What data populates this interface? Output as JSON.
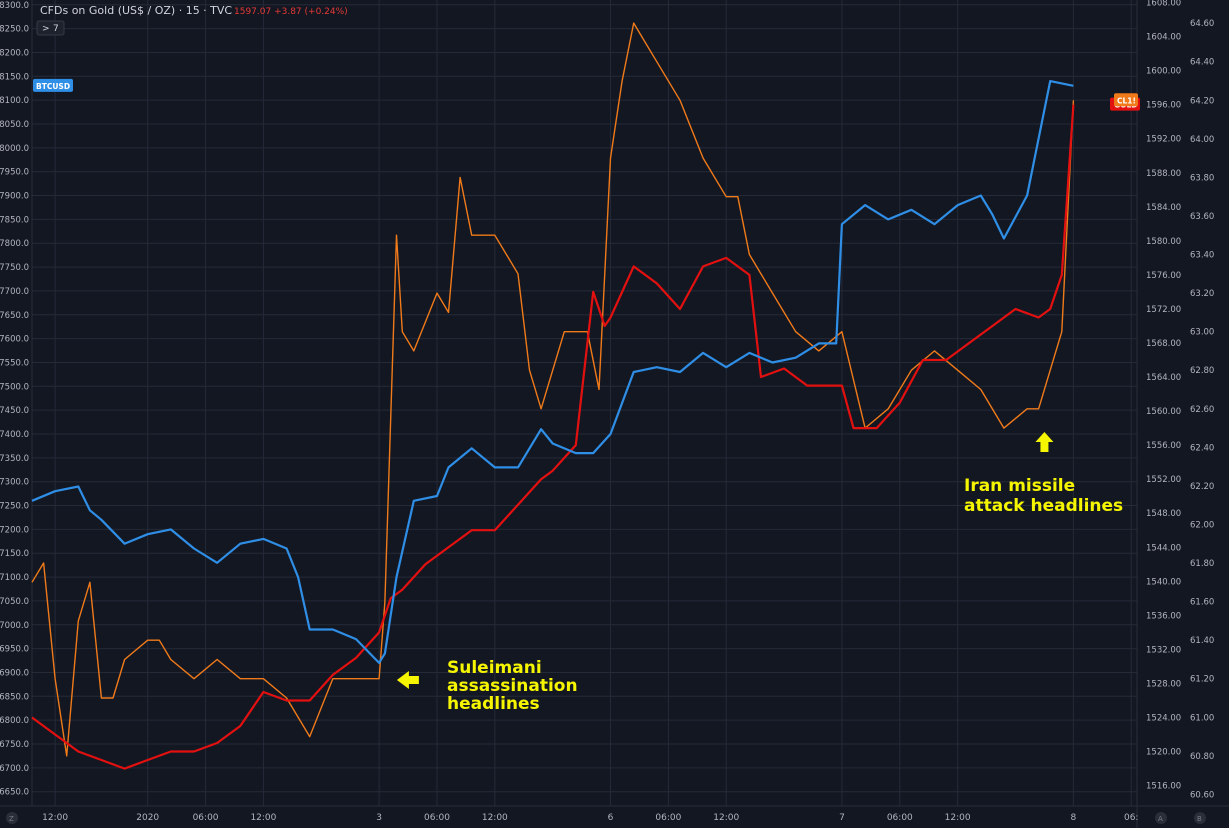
{
  "header": {
    "title": "CFDs on Gold (US$ / OZ) · 15 · TVC",
    "price": "1597.07 +3.87 (+0.24%)",
    "indicator_count": "7",
    "expand_symbol": ">"
  },
  "bottom_left_tag": "Z",
  "bottom_right_tags": [
    "A",
    "B"
  ],
  "colors": {
    "background": "#131722",
    "grid": "#242a38",
    "btc": "#2f8ee6",
    "gold": "#e31010",
    "cl": "#f07a1a",
    "annotation": "#f5f500",
    "axis_text": "#b2b5be"
  },
  "chart_data": {
    "type": "line",
    "title": "CFDs on Gold (US$ / OZ) · 15 · TVC",
    "x_labels": [
      "12:00",
      "2020",
      "06:00",
      "12:00",
      "3",
      "06:00",
      "12:00",
      "6",
      "06:00",
      "12:00",
      "7",
      "06:00",
      "12:00",
      "8",
      "06:"
    ],
    "x_label_pos": [
      0.2,
      1.0,
      1.5,
      2.0,
      3.0,
      3.5,
      4.0,
      5.0,
      5.5,
      6.0,
      7.0,
      7.5,
      8.0,
      9.0,
      9.5
    ],
    "x_range": [
      0,
      9.55
    ],
    "left_axis": {
      "series": "BTCUSD",
      "range": [
        6620,
        8310
      ],
      "ticks": [
        6650,
        6700,
        6750,
        6800,
        6850,
        6900,
        6950,
        7000,
        7050,
        7100,
        7150,
        7200,
        7250,
        7300,
        7350,
        7400,
        7450,
        7500,
        7550,
        7600,
        7650,
        7700,
        7750,
        7800,
        7850,
        7900,
        7950,
        8000,
        8050,
        8100,
        8150,
        8200,
        8250,
        8300
      ],
      "tick_labels": [
        "6650.0",
        "6700.0",
        "6750.0",
        "6800.0",
        "6850.0",
        "6900.0",
        "6950.0",
        "7000.0",
        "7050.0",
        "7100.0",
        "7150.0",
        "7200.0",
        "7250.0",
        "7300.0",
        "7350.0",
        "7400.0",
        "7450.0",
        "7500.0",
        "7550.0",
        "7600.0",
        "7650.0",
        "7700.0",
        "7750.0",
        "7800.0",
        "7850.0",
        "7900.0",
        "7950.0",
        "8000.0",
        "8050.0",
        "8100.0",
        "8150.0",
        "8200.0",
        "8250.0",
        "8300.0"
      ]
    },
    "mid_axis": {
      "series": "GOLD",
      "range": [
        1513.6,
        1608.3
      ],
      "ticks": [
        1516,
        1520,
        1524,
        1528,
        1532,
        1536,
        1540,
        1544,
        1548,
        1552,
        1556,
        1560,
        1564,
        1568,
        1572,
        1576,
        1580,
        1584,
        1588,
        1592,
        1596,
        1600,
        1604,
        1608
      ],
      "tick_labels": [
        "1516.00",
        "1520.00",
        "1524.00",
        "1528.00",
        "1532.00",
        "1536.00",
        "1540.00",
        "1544.00",
        "1548.00",
        "1552.00",
        "1556.00",
        "1560.00",
        "1564.00",
        "1568.00",
        "1572.00",
        "1576.00",
        "1580.00",
        "1584.00",
        "1588.00",
        "1592.00",
        "1596.00",
        "1600.00",
        "1604.00",
        "1608.00"
      ]
    },
    "right_axis": {
      "series": "CL1!",
      "range": [
        60.54,
        64.72
      ],
      "ticks": [
        60.6,
        60.8,
        61.0,
        61.2,
        61.4,
        61.6,
        61.8,
        62.0,
        62.2,
        62.4,
        62.6,
        62.8,
        63.0,
        63.2,
        63.4,
        63.6,
        63.8,
        64.0,
        64.2,
        64.4,
        64.6
      ],
      "tick_labels": [
        "60.60",
        "60.80",
        "61.00",
        "61.20",
        "61.40",
        "61.60",
        "61.80",
        "62.00",
        "62.20",
        "62.40",
        "62.60",
        "62.80",
        "63.00",
        "63.20",
        "63.40",
        "63.60",
        "63.80",
        "64.00",
        "64.20",
        "64.40",
        "64.60"
      ]
    },
    "series": [
      {
        "name": "BTCUSD",
        "axis": "left",
        "color": "#2f8ee6",
        "x": [
          0,
          0.2,
          0.4,
          0.5,
          0.6,
          0.8,
          1.0,
          1.2,
          1.4,
          1.6,
          1.8,
          2.0,
          2.2,
          2.3,
          2.4,
          2.6,
          2.8,
          3.0,
          3.05,
          3.15,
          3.3,
          3.5,
          3.6,
          3.8,
          4.0,
          4.2,
          4.4,
          4.5,
          4.7,
          4.85,
          5.0,
          5.2,
          5.4,
          5.6,
          5.8,
          6.0,
          6.2,
          6.4,
          6.6,
          6.8,
          6.95,
          7.0,
          7.2,
          7.4,
          7.6,
          7.8,
          8.0,
          8.2,
          8.3,
          8.4,
          8.6,
          8.8,
          9.0
        ],
        "y": [
          7260,
          7280,
          7290,
          7240,
          7220,
          7170,
          7190,
          7200,
          7160,
          7130,
          7170,
          7180,
          7160,
          7100,
          6990,
          6990,
          6970,
          6920,
          6940,
          7100,
          7260,
          7270,
          7330,
          7370,
          7330,
          7330,
          7410,
          7380,
          7360,
          7360,
          7400,
          7530,
          7540,
          7530,
          7570,
          7540,
          7570,
          7550,
          7560,
          7590,
          7590,
          7840,
          7880,
          7850,
          7870,
          7840,
          7880,
          7900,
          7860,
          7810,
          7900,
          8140,
          8130
        ],
        "xlabel_tag": "BTCUSD"
      },
      {
        "name": "GOLD",
        "axis": "mid",
        "color": "#e31010",
        "x": [
          0,
          0.2,
          0.4,
          0.6,
          0.8,
          1.0,
          1.2,
          1.4,
          1.6,
          1.8,
          2.0,
          2.2,
          2.4,
          2.6,
          2.8,
          3.0,
          3.1,
          3.2,
          3.4,
          3.6,
          3.8,
          4.0,
          4.2,
          4.4,
          4.5,
          4.7,
          4.85,
          4.95,
          5.0,
          5.2,
          5.4,
          5.6,
          5.8,
          6.0,
          6.2,
          6.3,
          6.5,
          6.7,
          6.9,
          7.0,
          7.1,
          7.3,
          7.5,
          7.7,
          7.9,
          8.1,
          8.3,
          8.5,
          8.7,
          8.8,
          8.9,
          9.0
        ],
        "y": [
          1524,
          1522,
          1520,
          1519,
          1518,
          1519,
          1520,
          1520,
          1521,
          1523,
          1527,
          1526,
          1526,
          1529,
          1531,
          1534,
          1538,
          1539,
          1542,
          1544,
          1546,
          1546,
          1549,
          1552,
          1553,
          1556,
          1574,
          1570,
          1571,
          1577,
          1575,
          1572,
          1577,
          1578,
          1576,
          1564,
          1565,
          1563,
          1563,
          1563,
          1558,
          1558,
          1561,
          1566,
          1566,
          1568,
          1570,
          1572,
          1571,
          1572,
          1576,
          1596
        ],
        "xlabel_tag": "GOLD"
      },
      {
        "name": "CL1!",
        "axis": "right",
        "color": "#f07a1a",
        "x": [
          0,
          0.1,
          0.2,
          0.3,
          0.4,
          0.5,
          0.6,
          0.7,
          0.8,
          1.0,
          1.1,
          1.2,
          1.4,
          1.6,
          1.8,
          2.0,
          2.2,
          2.4,
          2.6,
          2.8,
          3.0,
          3.05,
          3.15,
          3.2,
          3.3,
          3.5,
          3.6,
          3.7,
          3.8,
          4.0,
          4.2,
          4.3,
          4.4,
          4.6,
          4.8,
          4.9,
          5.0,
          5.1,
          5.2,
          5.3,
          5.4,
          5.6,
          5.8,
          6.0,
          6.1,
          6.2,
          6.4,
          6.6,
          6.8,
          7.0,
          7.2,
          7.4,
          7.6,
          7.8,
          8.0,
          8.2,
          8.4,
          8.6,
          8.7,
          8.8,
          8.9,
          9.0
        ],
        "y": [
          61.7,
          61.8,
          61.2,
          60.8,
          61.5,
          61.7,
          61.1,
          61.1,
          61.3,
          61.4,
          61.4,
          61.3,
          61.2,
          61.3,
          61.2,
          61.2,
          61.1,
          60.9,
          61.2,
          61.2,
          61.2,
          61.6,
          63.5,
          63.0,
          62.9,
          63.2,
          63.1,
          63.8,
          63.5,
          63.5,
          63.3,
          62.8,
          62.6,
          63.0,
          63.0,
          62.7,
          63.9,
          64.3,
          64.6,
          64.5,
          64.4,
          64.2,
          63.9,
          63.7,
          63.7,
          63.4,
          63.2,
          63.0,
          62.9,
          63.0,
          62.5,
          62.6,
          62.8,
          62.9,
          62.8,
          62.7,
          62.5,
          62.6,
          62.6,
          62.8,
          63.0,
          64.2
        ],
        "xlabel_tag": "CL1!"
      }
    ],
    "annotations": [
      {
        "id": "suleimani",
        "lines": [
          "Suleimani",
          "assassination",
          "headlines"
        ],
        "arrow": "left",
        "target_x": 3.05
      },
      {
        "id": "iran",
        "lines": [
          "Iran missile",
          "attack headlines"
        ],
        "arrow": "up",
        "target_x": 8.75
      }
    ]
  }
}
